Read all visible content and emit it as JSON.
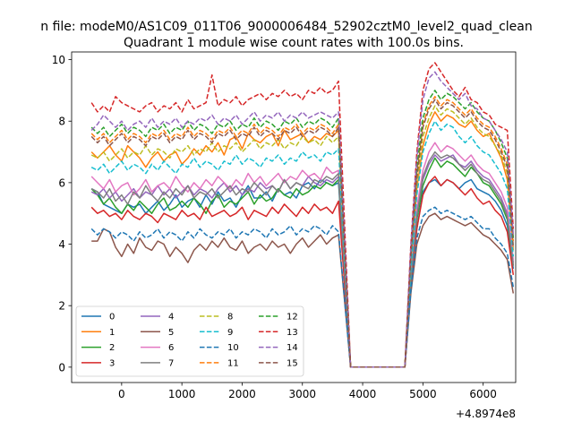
{
  "chart_data": {
    "type": "line",
    "suptitle": "n file: modeM0/AS1C09_011T06_9000006484_52902cztM0_level2_quad_clean",
    "title": "Quadrant 1 module wise count rates with 100.0s bins.",
    "xlabel": "",
    "ylabel": "",
    "x_offset_label": "+4.8974e8",
    "xlim": [
      -830,
      6540
    ],
    "ylim": [
      -0.5,
      10.25
    ],
    "x_ticks": [
      0,
      1000,
      2000,
      3000,
      4000,
      5000,
      6000
    ],
    "y_ticks": [
      0,
      2,
      4,
      6,
      8,
      10
    ],
    "grid": false,
    "legend": {
      "location": "lower-left",
      "columns": 4
    },
    "series": [
      {
        "name": "0",
        "color": "#1f77b4",
        "style": "solid",
        "seg1": [
          5.8,
          5.7,
          5.3,
          5.2,
          5.1,
          5.0,
          5.3,
          5.2,
          5.3,
          5.0,
          5.2,
          5.4,
          5.1,
          5.3,
          5.6,
          5.2,
          5.4,
          5.5,
          5.2,
          5.6,
          5.3,
          5.7,
          5.4,
          5.5,
          5.2,
          5.6,
          5.9,
          5.5,
          5.5,
          5.7,
          5.4,
          5.8,
          5.6,
          5.7,
          5.5,
          5.9,
          6.0,
          5.8,
          6.1,
          6.0,
          5.9,
          6.0
        ],
        "seg2": [
          2.7,
          4.5,
          5.7,
          6.0,
          6.1,
          5.9,
          6.1,
          6.0,
          5.8,
          6.0,
          6.1,
          5.8,
          5.7,
          5.6,
          5.4,
          5.1,
          4.6,
          3.2
        ]
      },
      {
        "name": "1",
        "color": "#ff7f0e",
        "style": "solid",
        "seg1": [
          7.0,
          6.8,
          7.0,
          7.2,
          6.9,
          6.7,
          7.2,
          7.0,
          6.8,
          6.5,
          6.8,
          7.0,
          6.7,
          6.9,
          7.0,
          6.6,
          6.8,
          7.1,
          6.9,
          7.2,
          7.0,
          7.3,
          6.9,
          7.4,
          7.5,
          7.1,
          7.6,
          7.4,
          7.3,
          7.5,
          7.6,
          7.2,
          7.7,
          7.4,
          7.5,
          7.6,
          7.3,
          7.5,
          7.4,
          7.6,
          7.5,
          7.7
        ],
        "seg2": [
          3.4,
          5.8,
          7.2,
          7.9,
          8.3,
          8.0,
          8.2,
          8.1,
          7.9,
          7.8,
          8.0,
          7.7,
          7.5,
          7.6,
          7.2,
          6.8,
          6.1,
          3.8
        ]
      },
      {
        "name": "2",
        "color": "#2ca02c",
        "style": "solid",
        "seg1": [
          5.8,
          5.6,
          5.3,
          5.5,
          5.2,
          5.0,
          5.3,
          5.1,
          5.4,
          5.2,
          5.0,
          5.3,
          5.5,
          5.1,
          5.2,
          5.4,
          5.2,
          5.5,
          5.3,
          5.0,
          5.4,
          5.6,
          5.2,
          5.4,
          5.3,
          5.5,
          5.7,
          5.3,
          5.6,
          5.4,
          5.5,
          5.8,
          5.6,
          5.5,
          5.8,
          5.6,
          5.7,
          5.9,
          5.8,
          6.0,
          5.9,
          6.1
        ],
        "seg2": [
          2.8,
          4.8,
          5.9,
          6.4,
          6.8,
          6.5,
          6.7,
          6.6,
          6.4,
          6.2,
          6.5,
          6.3,
          6.0,
          5.9,
          5.6,
          5.3,
          4.8,
          3.3
        ]
      },
      {
        "name": "3",
        "color": "#d62728",
        "style": "solid",
        "seg1": [
          5.2,
          5.0,
          5.1,
          4.9,
          5.0,
          4.8,
          5.1,
          4.9,
          4.8,
          5.0,
          4.9,
          4.7,
          5.0,
          4.9,
          4.8,
          5.1,
          4.9,
          5.0,
          4.8,
          5.2,
          4.9,
          5.0,
          5.1,
          4.9,
          5.0,
          5.2,
          4.8,
          5.1,
          5.0,
          4.9,
          5.2,
          5.0,
          5.3,
          5.1,
          4.9,
          5.2,
          5.0,
          5.3,
          5.1,
          5.2,
          5.0,
          5.4
        ],
        "seg2": [
          2.6,
          4.5,
          5.6,
          6.0,
          6.2,
          5.9,
          6.1,
          6.0,
          5.8,
          5.6,
          5.8,
          5.5,
          5.3,
          5.4,
          5.1,
          4.9,
          4.4,
          3.0
        ]
      },
      {
        "name": "4",
        "color": "#9467bd",
        "style": "solid",
        "seg1": [
          5.7,
          5.6,
          5.8,
          5.5,
          5.7,
          5.4,
          5.6,
          5.8,
          5.5,
          5.7,
          5.6,
          5.9,
          5.6,
          5.8,
          5.5,
          5.7,
          5.9,
          5.6,
          5.8,
          5.7,
          5.5,
          5.8,
          6.0,
          5.7,
          5.9,
          5.6,
          5.8,
          5.7,
          6.0,
          5.8,
          5.9,
          5.7,
          6.1,
          5.8,
          6.0,
          5.9,
          6.2,
          6.0,
          5.9,
          6.1,
          6.0,
          6.2
        ],
        "seg2": [
          2.9,
          5.0,
          6.1,
          6.6,
          6.9,
          6.7,
          6.8,
          6.9,
          6.6,
          6.5,
          6.7,
          6.4,
          6.2,
          6.1,
          5.8,
          5.5,
          5.0,
          3.4
        ]
      },
      {
        "name": "5",
        "color": "#8c564b",
        "style": "solid",
        "seg1": [
          4.1,
          4.1,
          4.5,
          4.4,
          3.9,
          3.6,
          4.0,
          3.7,
          4.2,
          3.9,
          3.8,
          4.1,
          4.0,
          3.6,
          3.9,
          3.7,
          3.4,
          3.8,
          4.0,
          3.8,
          4.1,
          3.9,
          4.2,
          3.9,
          3.8,
          4.1,
          3.7,
          3.9,
          4.0,
          3.8,
          4.1,
          3.9,
          4.0,
          3.7,
          4.0,
          4.2,
          3.9,
          4.1,
          4.3,
          4.0,
          4.2,
          4.3
        ],
        "seg2": [
          2.4,
          4.0,
          4.6,
          4.9,
          5.0,
          4.8,
          4.9,
          4.8,
          4.7,
          4.6,
          4.7,
          4.5,
          4.3,
          4.2,
          4.0,
          3.8,
          3.5,
          2.4
        ]
      },
      {
        "name": "6",
        "color": "#e377c2",
        "style": "solid",
        "seg1": [
          6.2,
          6.0,
          5.8,
          6.1,
          5.7,
          5.9,
          6.0,
          5.6,
          5.8,
          6.1,
          5.7,
          5.9,
          6.0,
          5.8,
          6.2,
          5.9,
          5.7,
          6.0,
          5.8,
          6.1,
          5.9,
          6.2,
          6.0,
          5.8,
          6.1,
          5.9,
          6.3,
          6.0,
          6.2,
          5.9,
          6.1,
          6.3,
          6.0,
          6.2,
          6.1,
          6.4,
          6.2,
          6.3,
          6.1,
          6.5,
          6.3,
          6.4
        ],
        "seg2": [
          3.0,
          5.2,
          6.4,
          7.0,
          7.3,
          7.0,
          7.2,
          7.1,
          6.9,
          6.7,
          6.9,
          6.6,
          6.4,
          6.3,
          6.0,
          5.7,
          5.2,
          3.5
        ]
      },
      {
        "name": "7",
        "color": "#7f7f7f",
        "style": "solid",
        "seg1": [
          5.8,
          5.7,
          5.5,
          5.8,
          5.4,
          5.6,
          5.3,
          5.7,
          5.5,
          5.9,
          5.6,
          5.4,
          5.7,
          5.5,
          5.8,
          5.6,
          5.9,
          5.5,
          5.7,
          5.6,
          5.8,
          5.5,
          5.7,
          5.9,
          5.6,
          5.8,
          5.7,
          6.0,
          5.8,
          5.6,
          5.9,
          5.7,
          6.1,
          5.8,
          6.0,
          5.9,
          5.8,
          6.1,
          6.0,
          6.2,
          6.1,
          6.3
        ],
        "seg2": [
          2.8,
          4.9,
          6.2,
          6.7,
          7.0,
          6.8,
          6.9,
          6.8,
          6.6,
          6.4,
          6.6,
          6.3,
          6.1,
          6.0,
          5.7,
          5.4,
          4.9,
          3.3
        ]
      },
      {
        "name": "8",
        "color": "#bcbd22",
        "style": "dashed",
        "seg1": [
          6.9,
          6.8,
          7.0,
          6.7,
          6.9,
          7.1,
          6.8,
          7.0,
          6.9,
          7.2,
          6.9,
          7.1,
          7.0,
          6.8,
          7.1,
          7.0,
          7.2,
          6.9,
          7.1,
          7.0,
          7.3,
          7.0,
          7.2,
          7.1,
          7.3,
          7.0,
          7.2,
          7.4,
          7.1,
          7.3,
          7.2,
          7.4,
          7.1,
          7.3,
          7.2,
          7.5,
          7.3,
          7.4,
          7.2,
          7.5,
          7.3,
          7.5
        ],
        "seg2": [
          3.5,
          6.0,
          7.5,
          8.1,
          8.5,
          8.2,
          8.4,
          8.3,
          8.1,
          7.9,
          8.1,
          7.8,
          7.6,
          7.5,
          7.2,
          6.9,
          6.3,
          3.9
        ]
      },
      {
        "name": "9",
        "color": "#17becf",
        "style": "dashed",
        "seg1": [
          6.5,
          6.4,
          6.6,
          6.3,
          6.5,
          6.7,
          6.4,
          6.6,
          6.5,
          6.3,
          6.6,
          6.4,
          6.7,
          6.5,
          6.3,
          6.6,
          6.5,
          6.8,
          6.5,
          6.7,
          6.6,
          6.4,
          6.7,
          6.6,
          6.9,
          6.6,
          6.8,
          6.7,
          6.5,
          6.8,
          6.7,
          6.9,
          6.6,
          6.8,
          6.7,
          7.0,
          6.8,
          6.9,
          6.7,
          7.0,
          6.9,
          7.1
        ],
        "seg2": [
          3.2,
          5.6,
          7.0,
          7.6,
          8.0,
          7.7,
          7.9,
          7.8,
          7.5,
          7.3,
          7.5,
          7.2,
          7.0,
          6.9,
          6.6,
          6.3,
          5.8,
          3.6
        ]
      },
      {
        "name": "10",
        "color": "#1f77b4",
        "style": "dashed",
        "seg1": [
          4.5,
          4.3,
          4.5,
          4.4,
          4.2,
          4.4,
          4.3,
          4.1,
          4.4,
          4.2,
          4.3,
          4.5,
          4.2,
          4.4,
          4.3,
          4.1,
          4.4,
          4.2,
          4.5,
          4.3,
          4.2,
          4.4,
          4.3,
          4.5,
          4.2,
          4.4,
          4.3,
          4.5,
          4.4,
          4.2,
          4.5,
          4.3,
          4.4,
          4.6,
          4.3,
          4.5,
          4.4,
          4.6,
          4.5,
          4.3,
          4.6,
          4.4
        ],
        "seg2": [
          2.5,
          4.2,
          4.9,
          5.1,
          5.2,
          5.0,
          5.1,
          5.0,
          4.9,
          4.8,
          4.9,
          4.7,
          4.5,
          4.5,
          4.2,
          4.0,
          3.7,
          2.6
        ]
      },
      {
        "name": "11",
        "color": "#ff7f0e",
        "style": "dashed",
        "seg1": [
          7.6,
          7.4,
          7.6,
          7.3,
          7.5,
          7.7,
          7.4,
          7.6,
          7.5,
          7.3,
          7.6,
          7.5,
          7.7,
          7.4,
          7.6,
          7.5,
          7.8,
          7.5,
          7.7,
          7.6,
          7.4,
          7.7,
          7.6,
          7.8,
          7.5,
          7.7,
          7.6,
          7.9,
          7.6,
          7.8,
          7.7,
          7.5,
          7.8,
          7.7,
          7.9,
          7.6,
          7.8,
          7.7,
          7.9,
          7.8,
          7.6,
          7.9
        ],
        "seg2": [
          3.7,
          6.3,
          7.9,
          8.5,
          8.8,
          8.5,
          8.7,
          8.6,
          8.4,
          8.2,
          8.4,
          8.1,
          7.9,
          7.8,
          7.5,
          7.1,
          6.6,
          4.1
        ]
      },
      {
        "name": "12",
        "color": "#2ca02c",
        "style": "dashed",
        "seg1": [
          7.8,
          7.6,
          7.8,
          7.5,
          7.7,
          7.9,
          7.6,
          7.8,
          7.7,
          7.5,
          7.8,
          7.7,
          7.9,
          7.6,
          7.8,
          7.7,
          8.0,
          7.7,
          7.9,
          7.8,
          7.6,
          7.9,
          7.8,
          8.0,
          7.7,
          7.9,
          7.8,
          8.1,
          7.8,
          8.0,
          7.9,
          7.7,
          8.0,
          7.9,
          8.1,
          7.8,
          8.0,
          7.9,
          8.1,
          8.0,
          7.8,
          8.1
        ],
        "seg2": [
          3.8,
          6.5,
          8.1,
          8.7,
          9.0,
          8.7,
          8.9,
          8.8,
          8.6,
          8.4,
          8.6,
          8.3,
          8.1,
          8.0,
          7.7,
          7.3,
          6.8,
          4.2
        ]
      },
      {
        "name": "13",
        "color": "#d62728",
        "style": "dashed",
        "seg1": [
          8.6,
          8.3,
          8.5,
          8.3,
          8.8,
          8.6,
          8.5,
          8.4,
          8.3,
          8.5,
          8.6,
          8.3,
          8.5,
          8.4,
          8.6,
          8.3,
          8.7,
          8.4,
          8.5,
          8.6,
          9.5,
          8.5,
          8.7,
          8.6,
          8.8,
          8.5,
          8.7,
          8.8,
          8.9,
          8.7,
          8.9,
          8.8,
          9.0,
          8.8,
          8.9,
          8.7,
          9.0,
          8.9,
          9.1,
          8.9,
          9.0,
          9.3
        ],
        "seg2": [
          4.0,
          7.0,
          9.0,
          9.7,
          9.9,
          9.6,
          9.3,
          9.0,
          8.8,
          9.1,
          8.7,
          8.6,
          8.3,
          8.2,
          7.9,
          7.8,
          7.7,
          4.5
        ]
      },
      {
        "name": "14",
        "color": "#9467bd",
        "style": "dashed",
        "seg1": [
          7.7,
          7.9,
          8.2,
          8.0,
          7.8,
          8.0,
          7.7,
          7.9,
          8.0,
          7.8,
          8.1,
          7.8,
          8.0,
          7.9,
          8.1,
          7.8,
          8.0,
          7.9,
          8.1,
          8.0,
          8.2,
          7.9,
          8.1,
          8.0,
          8.2,
          7.9,
          8.1,
          8.3,
          8.0,
          8.2,
          8.1,
          8.3,
          8.0,
          8.2,
          8.1,
          8.3,
          8.1,
          8.2,
          8.3,
          8.2,
          8.1,
          8.3
        ],
        "seg2": [
          3.9,
          6.8,
          8.7,
          9.4,
          9.6,
          9.3,
          9.1,
          8.9,
          8.7,
          8.9,
          8.5,
          8.4,
          8.1,
          8.0,
          7.7,
          7.4,
          7.0,
          4.3
        ]
      },
      {
        "name": "15",
        "color": "#8c564b",
        "style": "dashed",
        "seg1": [
          7.5,
          7.3,
          7.5,
          7.2,
          7.4,
          7.6,
          7.3,
          7.5,
          7.4,
          7.2,
          7.5,
          7.4,
          7.6,
          7.3,
          7.5,
          7.4,
          7.7,
          7.4,
          7.6,
          7.5,
          7.3,
          7.6,
          7.5,
          7.7,
          7.4,
          7.6,
          7.5,
          7.8,
          7.5,
          7.7,
          7.6,
          7.4,
          7.7,
          7.6,
          7.8,
          7.5,
          7.7,
          7.6,
          7.8,
          7.7,
          7.5,
          7.8
        ],
        "seg2": [
          3.6,
          6.2,
          7.8,
          8.4,
          8.7,
          8.4,
          8.6,
          8.5,
          8.3,
          8.1,
          8.3,
          8.0,
          7.8,
          7.7,
          7.4,
          7.0,
          6.5,
          3.9
        ]
      }
    ],
    "x_start": -500,
    "x_step": 100,
    "gap_values": [
      0.0,
      0.0,
      0.0,
      0.0,
      0.0,
      0.0,
      0.0,
      0.0,
      0.0,
      0.0
    ],
    "gap_x": [
      3800,
      3900,
      4000,
      4100,
      4200,
      4300,
      4400,
      4500,
      4600,
      4700
    ],
    "seg2_x_start": 4800
  }
}
